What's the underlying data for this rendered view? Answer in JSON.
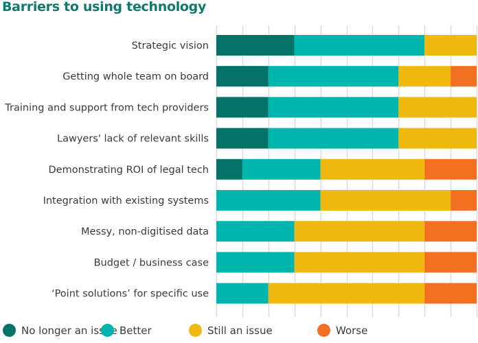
{
  "chart_data": {
    "type": "bar",
    "orientation": "horizontal",
    "stacked": true,
    "title": "Barriers to using technology",
    "xlabel": "",
    "ylabel": "",
    "xlim": [
      0,
      10
    ],
    "grid": true,
    "legend_position": "bottom",
    "categories": [
      "Strategic vision",
      "Getting whole team on board",
      "Training and support from tech providers",
      "Lawyers' lack of relevant skills",
      "Demonstrating ROI of legal tech",
      "Integration with existing systems",
      "Messy, non-digitised data",
      "Budget / business case",
      "‘Point solutions’ for specific use"
    ],
    "series": [
      {
        "name": "No longer an issue",
        "color": "#03736a",
        "values": [
          3,
          2,
          2,
          2,
          1,
          0,
          0,
          0,
          0
        ]
      },
      {
        "name": "Better",
        "color": "#00b5ae",
        "values": [
          5,
          5,
          5,
          5,
          3,
          4,
          3,
          3,
          2
        ]
      },
      {
        "name": "Still an issue",
        "color": "#f0b912",
        "values": [
          2,
          2,
          3,
          3,
          4,
          5,
          5,
          5,
          6
        ]
      },
      {
        "name": "Worse",
        "color": "#f37022",
        "values": [
          0,
          1,
          0,
          0,
          2,
          1,
          2,
          2,
          2
        ]
      }
    ]
  }
}
